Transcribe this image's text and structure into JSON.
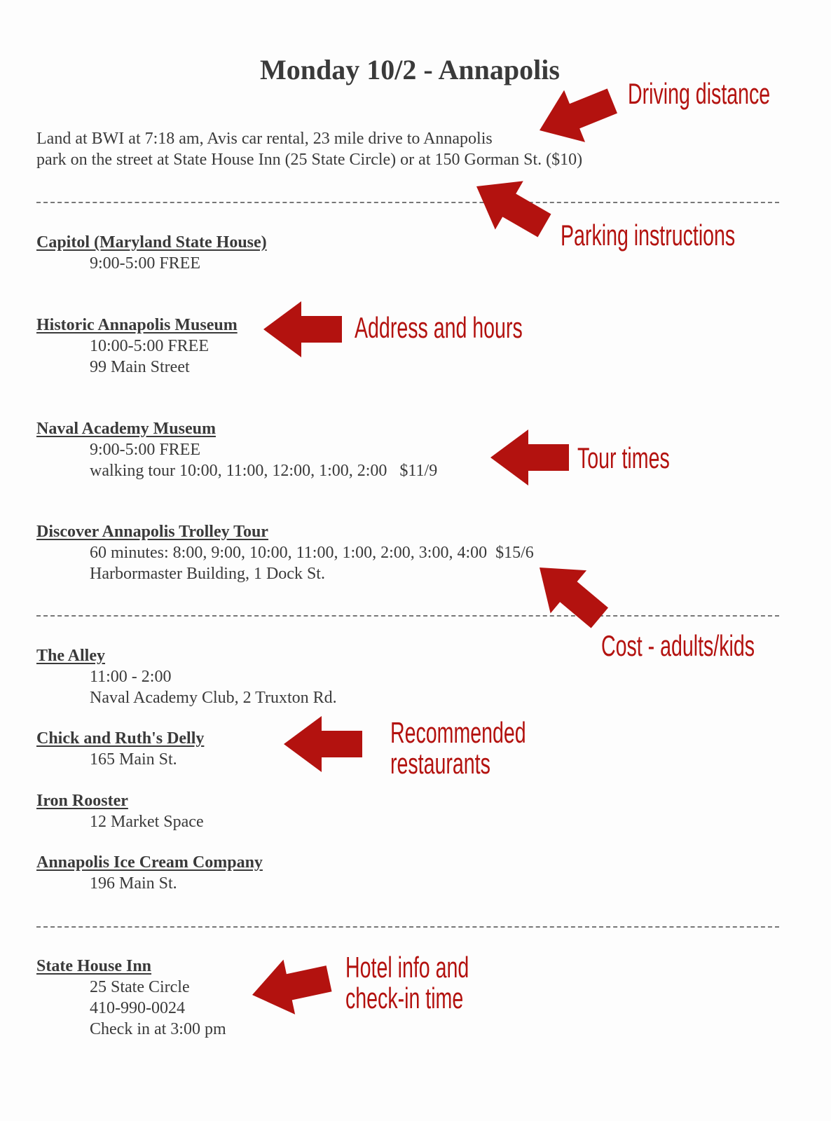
{
  "title": "Monday 10/2 - Annapolis",
  "intro": [
    "Land at BWI at 7:18 am, Avis car rental, 23 mile drive to Annapolis",
    "park on the street at State House Inn (25 State Circle) or at 150 Gorman St. ($10)"
  ],
  "attractions": [
    {
      "name": "Capitol (Maryland State House)",
      "lines": [
        "9:00-5:00 FREE"
      ]
    },
    {
      "name": "Historic Annapolis Museum",
      "lines": [
        "10:00-5:00 FREE",
        "99 Main Street"
      ]
    },
    {
      "name": "Naval Academy Museum",
      "lines": [
        "9:00-5:00 FREE",
        "walking tour 10:00, 11:00, 12:00, 1:00, 2:00   $11/9"
      ]
    },
    {
      "name": "Discover Annapolis Trolley Tour",
      "lines": [
        "60 minutes: 8:00, 9:00, 10:00, 11:00, 1:00, 2:00, 3:00, 4:00  $15/6",
        "Harbormaster Building, 1 Dock St."
      ]
    }
  ],
  "restaurants": [
    {
      "name": "The Alley",
      "lines": [
        "11:00 - 2:00",
        "Naval Academy Club, 2 Truxton Rd."
      ]
    },
    {
      "name": "Chick and Ruth's Delly",
      "lines": [
        "165 Main St."
      ]
    },
    {
      "name": "Iron Rooster",
      "lines": [
        "12 Market Space"
      ]
    },
    {
      "name": "Annapolis Ice Cream Company",
      "lines": [
        "196 Main St."
      ]
    }
  ],
  "hotel": {
    "name": "State House Inn",
    "lines": [
      "25 State Circle",
      "410-990-0024",
      "Check in at 3:00 pm"
    ]
  },
  "annotations": {
    "driving": "Driving distance",
    "parking": "Parking instructions",
    "address": "Address and hours",
    "tour": "Tour times",
    "cost": "Cost - adults/kids",
    "restaurants_1": "Recommended",
    "restaurants_2": "restaurants",
    "hotel_1": "Hotel info and",
    "hotel_2": "check-in time"
  },
  "colors": {
    "annotation": "#b3120f",
    "text": "#3a3a3a"
  },
  "icons": [
    "arrow-icon"
  ]
}
